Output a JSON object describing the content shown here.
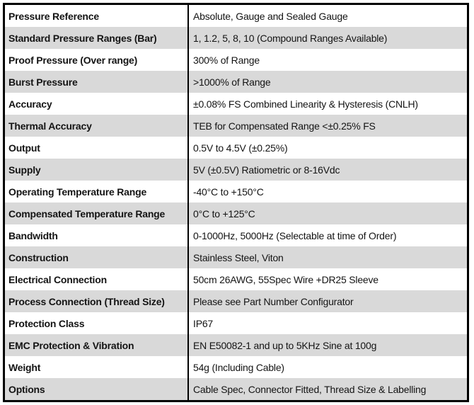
{
  "table": {
    "rows": [
      {
        "label": "Pressure Reference",
        "value": "Absolute, Gauge and Sealed Gauge"
      },
      {
        "label": "Standard Pressure Ranges (Bar)",
        "value": "1, 1.2, 5, 8, 10 (Compound Ranges Available)"
      },
      {
        "label": "Proof Pressure (Over range)",
        "value": "300% of Range"
      },
      {
        "label": "Burst Pressure",
        "value": ">1000% of Range"
      },
      {
        "label": "Accuracy",
        "value": "±0.08% FS Combined Linearity & Hysteresis (CNLH)"
      },
      {
        "label": "Thermal Accuracy",
        "value": "TEB for Compensated Range <±0.25% FS"
      },
      {
        "label": "Output",
        "value": "0.5V to 4.5V (±0.25%)"
      },
      {
        "label": "Supply",
        "value": "5V (±0.5V) Ratiometric or 8-16Vdc"
      },
      {
        "label": "Operating Temperature Range",
        "value": "-40°C to +150°C"
      },
      {
        "label": "Compensated Temperature Range",
        "value": "0°C to +125°C"
      },
      {
        "label": "Bandwidth",
        "value": "0-1000Hz, 5000Hz (Selectable at time of Order)"
      },
      {
        "label": "Construction",
        "value": "Stainless Steel, Viton"
      },
      {
        "label": "Electrical Connection",
        "value": "50cm 26AWG, 55Spec Wire +DR25 Sleeve"
      },
      {
        "label": "Process Connection (Thread Size)",
        "value": "Please see Part Number Configurator"
      },
      {
        "label": "Protection Class",
        "value": "IP67"
      },
      {
        "label": "EMC Protection & Vibration",
        "value": "EN E50082-1 and up to 5KHz Sine at 100g"
      },
      {
        "label": "Weight",
        "value": "54g (Including Cable)"
      },
      {
        "label": "Options",
        "value": "Cable Spec, Connector Fitted, Thread Size & Labelling"
      }
    ]
  },
  "colors": {
    "row_alt_background": "#d9d9d9",
    "border": "#000000",
    "text": "#141414"
  }
}
